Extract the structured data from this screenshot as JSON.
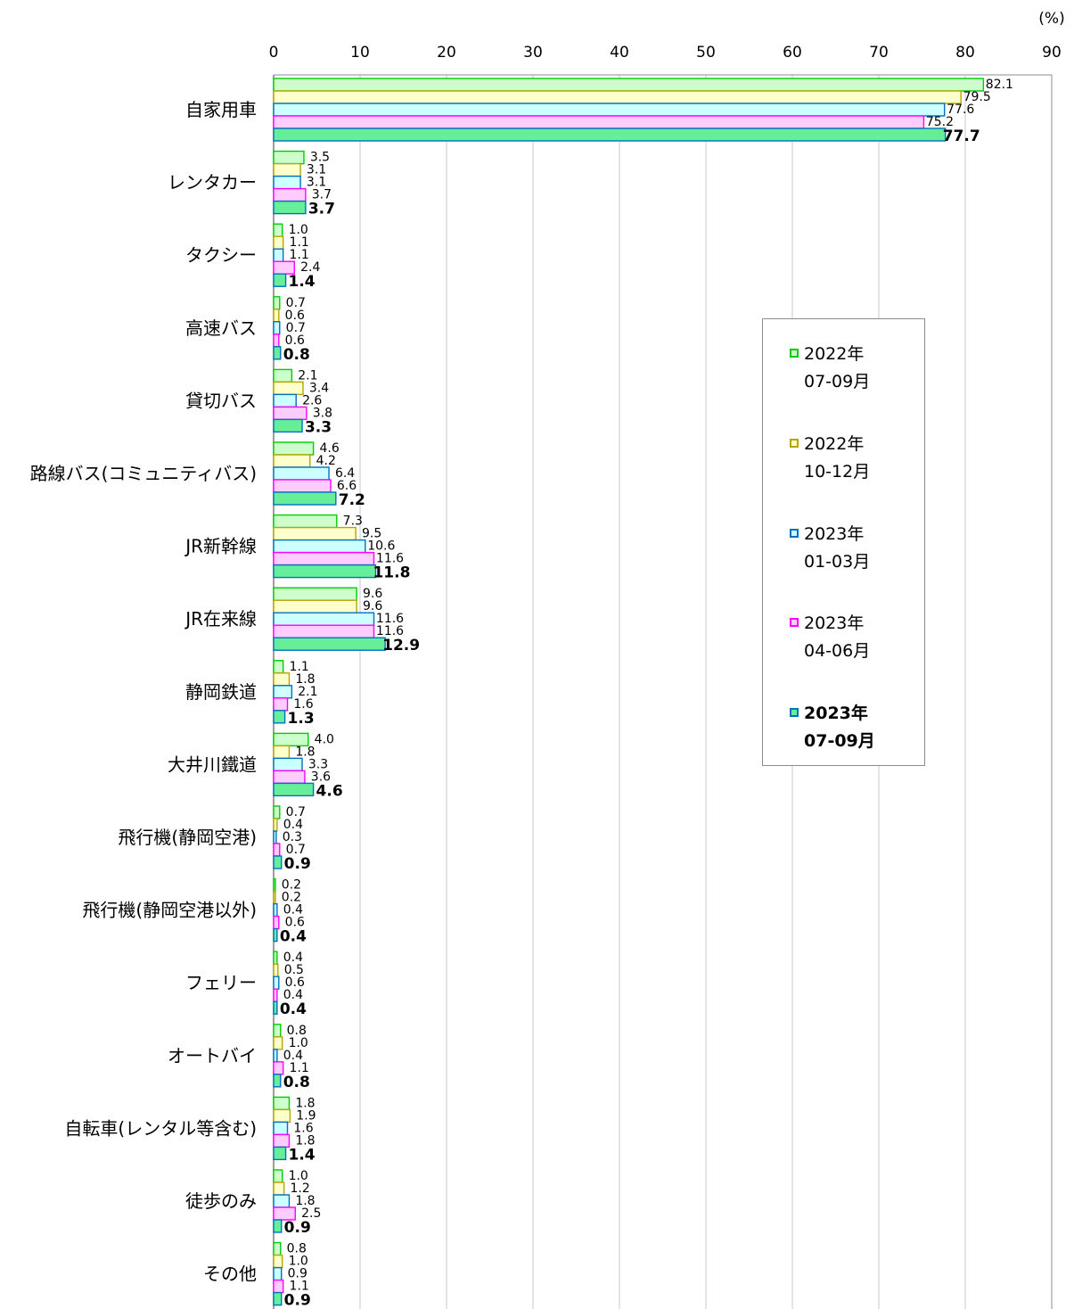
{
  "chart_data": {
    "type": "bar",
    "orientation": "horizontal",
    "unit_label": "(%)",
    "xlim": [
      0,
      90
    ],
    "x_ticks": [
      "0",
      "10",
      "20",
      "30",
      "40",
      "50",
      "60",
      "70",
      "80",
      "90"
    ],
    "grid": true,
    "legend_position": "right",
    "categories": [
      "自家用車",
      "レンタカー",
      "タクシー",
      "高速バス",
      "貸切バス",
      "路線バス(コミュニティバス)",
      "JR新幹線",
      "JR在来線",
      "静岡鉄道",
      "大井川鐵道",
      "飛行機(静岡空港)",
      "飛行機(静岡空港以外)",
      "フェリー",
      "オートバイ",
      "自転車(レンタル等含む)",
      "徒歩のみ",
      "その他"
    ],
    "series": [
      {
        "name_line1": "2022年",
        "name_line2": "07-09月",
        "fill": "#ccffcc",
        "stroke": "#00cc00",
        "highlight": false,
        "values": [
          82.1,
          3.5,
          1.0,
          0.7,
          2.1,
          4.6,
          7.3,
          9.6,
          1.1,
          4.0,
          0.7,
          0.2,
          0.4,
          0.8,
          1.8,
          1.0,
          0.8
        ],
        "labels": [
          "82.1",
          "3.5",
          "1.0",
          "0.7",
          "2.1",
          "4.6",
          "7.3",
          "9.6",
          "1.1",
          "4.0",
          "0.7",
          "0.2",
          "0.4",
          "0.8",
          "1.8",
          "1.0",
          "0.8"
        ]
      },
      {
        "name_line1": "2022年",
        "name_line2": "10-12月",
        "fill": "#ffffcc",
        "stroke": "#b3a600",
        "highlight": false,
        "values": [
          79.5,
          3.1,
          1.1,
          0.6,
          3.4,
          4.2,
          9.5,
          9.6,
          1.8,
          1.8,
          0.4,
          0.2,
          0.5,
          1.0,
          1.9,
          1.2,
          1.0
        ],
        "labels": [
          "79.5",
          "3.1",
          "1.1",
          "0.6",
          "3.4",
          "4.2",
          "9.5",
          "9.6",
          "1.8",
          "1.8",
          "0.4",
          "0.2",
          "0.5",
          "1.0",
          "1.9",
          "1.2",
          "1.0"
        ]
      },
      {
        "name_line1": "2023年",
        "name_line2": "01-03月",
        "fill": "#ccffff",
        "stroke": "#0070c0",
        "highlight": false,
        "values": [
          77.6,
          3.1,
          1.1,
          0.7,
          2.6,
          6.4,
          10.6,
          11.6,
          2.1,
          3.3,
          0.3,
          0.4,
          0.6,
          0.4,
          1.6,
          1.8,
          0.9
        ],
        "labels": [
          "77.6",
          "3.1",
          "1.1",
          "0.7",
          "2.6",
          "6.4",
          "10.6",
          "11.6",
          "2.1",
          "3.3",
          "0.3",
          "0.4",
          "0.6",
          "0.4",
          "1.6",
          "1.8",
          "0.9"
        ]
      },
      {
        "name_line1": "2023年",
        "name_line2": "04-06月",
        "fill": "#ffccff",
        "stroke": "#ff00ff",
        "highlight": false,
        "values": [
          75.2,
          3.7,
          2.4,
          0.6,
          3.8,
          6.6,
          11.6,
          11.6,
          1.6,
          3.6,
          0.7,
          0.6,
          0.4,
          1.1,
          1.8,
          2.5,
          1.1
        ],
        "labels": [
          "75.2",
          "3.7",
          "2.4",
          "0.6",
          "3.8",
          "6.6",
          "11.6",
          "11.6",
          "1.6",
          "3.6",
          "0.7",
          "0.6",
          "0.4",
          "1.1",
          "1.8",
          "2.5",
          "1.1"
        ]
      },
      {
        "name_line1": "2023年",
        "name_line2": "07-09月",
        "fill": "#66ee99",
        "stroke": "#0070c0",
        "highlight": true,
        "values": [
          77.7,
          3.7,
          1.4,
          0.8,
          3.3,
          7.2,
          11.8,
          12.9,
          1.3,
          4.6,
          0.9,
          0.4,
          0.4,
          0.8,
          1.4,
          0.9,
          0.9
        ],
        "labels": [
          "77.7",
          "3.7",
          "1.4",
          "0.8",
          "3.3",
          "7.2",
          "11.8",
          "12.9",
          "1.3",
          "4.6",
          "0.9",
          "0.4",
          "0.4",
          "0.8",
          "1.4",
          "0.9",
          "0.9"
        ]
      }
    ]
  }
}
